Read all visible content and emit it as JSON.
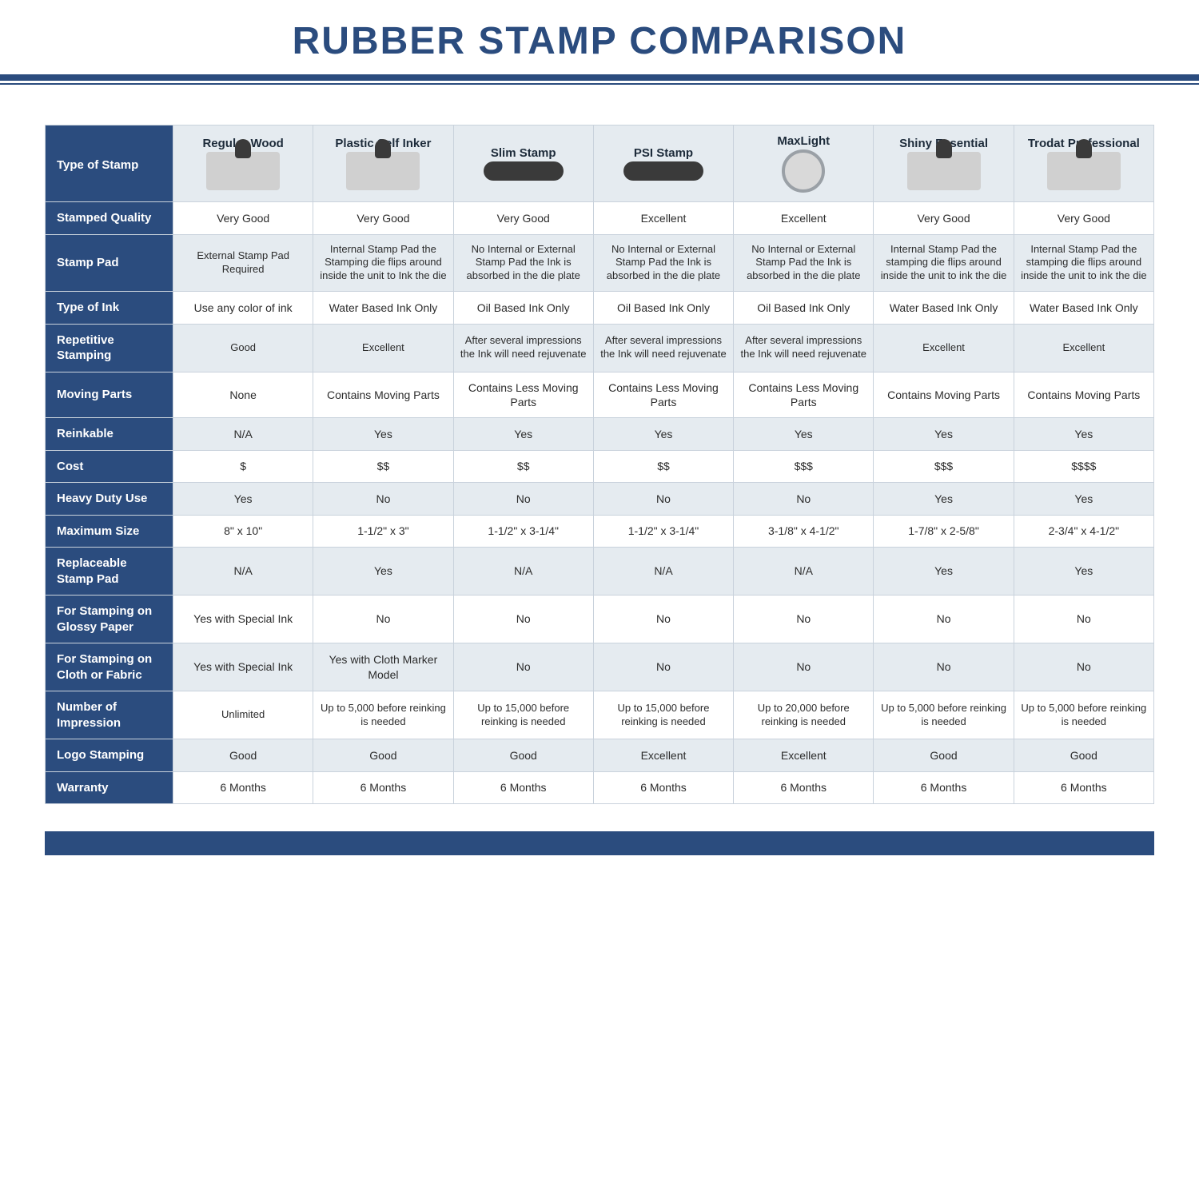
{
  "title": "RUBBER STAMP COMPARISON",
  "colors": {
    "navy": "#2b4c7e",
    "shade": "#e5ebf0",
    "border": "#c9d2dc",
    "text": "#2c2c2c",
    "white": "#ffffff"
  },
  "columns": [
    "Regular Wood",
    "Plastic Self Inker",
    "Slim Stamp",
    "PSI Stamp",
    "MaxLight",
    "Shiny Essential",
    "Trodat Professional"
  ],
  "corner_label": "Type of Stamp",
  "rows": [
    {
      "label": "Stamped Quality",
      "shade": false,
      "cells": [
        "Very Good",
        "Very Good",
        "Very Good",
        "Excellent",
        "Excellent",
        "Very Good",
        "Very Good"
      ]
    },
    {
      "label": "Stamp Pad",
      "shade": true,
      "small": true,
      "cells": [
        "External Stamp Pad Required",
        "Internal Stamp Pad the Stamping die flips around inside the unit to Ink the die",
        "No Internal or External Stamp Pad the Ink is absorbed in the die plate",
        "No Internal or External Stamp Pad the Ink is absorbed in the die plate",
        "No Internal or External Stamp Pad the Ink is absorbed in the die plate",
        "Internal Stamp Pad the stamping die flips around inside the unit to ink the die",
        "Internal Stamp Pad the stamping die flips around inside the unit to ink the die"
      ]
    },
    {
      "label": "Type of Ink",
      "shade": false,
      "cells": [
        "Use any color of ink",
        "Water Based Ink Only",
        "Oil Based Ink Only",
        "Oil Based Ink Only",
        "Oil Based Ink Only",
        "Water Based Ink Only",
        "Water Based Ink Only"
      ]
    },
    {
      "label": "Repetitive Stamping",
      "shade": true,
      "small": true,
      "cells": [
        "Good",
        "Excellent",
        "After several impressions the Ink will need rejuvenate",
        "After several impressions the Ink will need rejuvenate",
        "After several impressions the Ink will need rejuvenate",
        "Excellent",
        "Excellent"
      ]
    },
    {
      "label": "Moving Parts",
      "shade": false,
      "cells": [
        "None",
        "Contains Moving Parts",
        "Contains Less Moving Parts",
        "Contains Less Moving Parts",
        "Contains Less Moving Parts",
        "Contains Moving Parts",
        "Contains Moving Parts"
      ]
    },
    {
      "label": "Reinkable",
      "shade": true,
      "cells": [
        "N/A",
        "Yes",
        "Yes",
        "Yes",
        "Yes",
        "Yes",
        "Yes"
      ]
    },
    {
      "label": "Cost",
      "shade": false,
      "cells": [
        "$",
        "$$",
        "$$",
        "$$",
        "$$$",
        "$$$",
        "$$$$"
      ]
    },
    {
      "label": "Heavy Duty Use",
      "shade": true,
      "cells": [
        "Yes",
        "No",
        "No",
        "No",
        "No",
        "Yes",
        "Yes"
      ]
    },
    {
      "label": "Maximum Size",
      "shade": false,
      "cells": [
        "8\" x 10\"",
        "1-1/2\" x 3\"",
        "1-1/2\" x 3-1/4\"",
        "1-1/2\" x 3-1/4\"",
        "3-1/8\" x 4-1/2\"",
        "1-7/8\" x 2-5/8\"",
        "2-3/4\" x 4-1/2\""
      ]
    },
    {
      "label": "Replaceable Stamp Pad",
      "shade": true,
      "cells": [
        "N/A",
        "Yes",
        "N/A",
        "N/A",
        "N/A",
        "Yes",
        "Yes"
      ]
    },
    {
      "label": "For Stamping on Glossy Paper",
      "shade": false,
      "cells": [
        "Yes with Special Ink",
        "No",
        "No",
        "No",
        "No",
        "No",
        "No"
      ]
    },
    {
      "label": "For Stamping on Cloth or Fabric",
      "shade": true,
      "cells": [
        "Yes with Special Ink",
        "Yes with Cloth Marker Model",
        "No",
        "No",
        "No",
        "No",
        "No"
      ]
    },
    {
      "label": "Number of Impression",
      "shade": false,
      "small": true,
      "cells": [
        "Unlimited",
        "Up to 5,000 before reinking is needed",
        "Up to 15,000 before reinking is needed",
        "Up to 15,000 before reinking is needed",
        "Up to 20,000 before reinking is needed",
        "Up to 5,000 before reinking is needed",
        "Up to 5,000 before reinking is needed"
      ]
    },
    {
      "label": "Logo Stamping",
      "shade": true,
      "cells": [
        "Good",
        "Good",
        "Good",
        "Excellent",
        "Excellent",
        "Good",
        "Good"
      ]
    },
    {
      "label": "Warranty",
      "shade": false,
      "cells": [
        "6 Months",
        "6 Months",
        "6 Months",
        "6 Months",
        "6 Months",
        "6 Months",
        "6 Months"
      ]
    }
  ],
  "icon_shapes": [
    "ico",
    "ico",
    "flat",
    "flat",
    "round",
    "ico",
    "ico"
  ]
}
